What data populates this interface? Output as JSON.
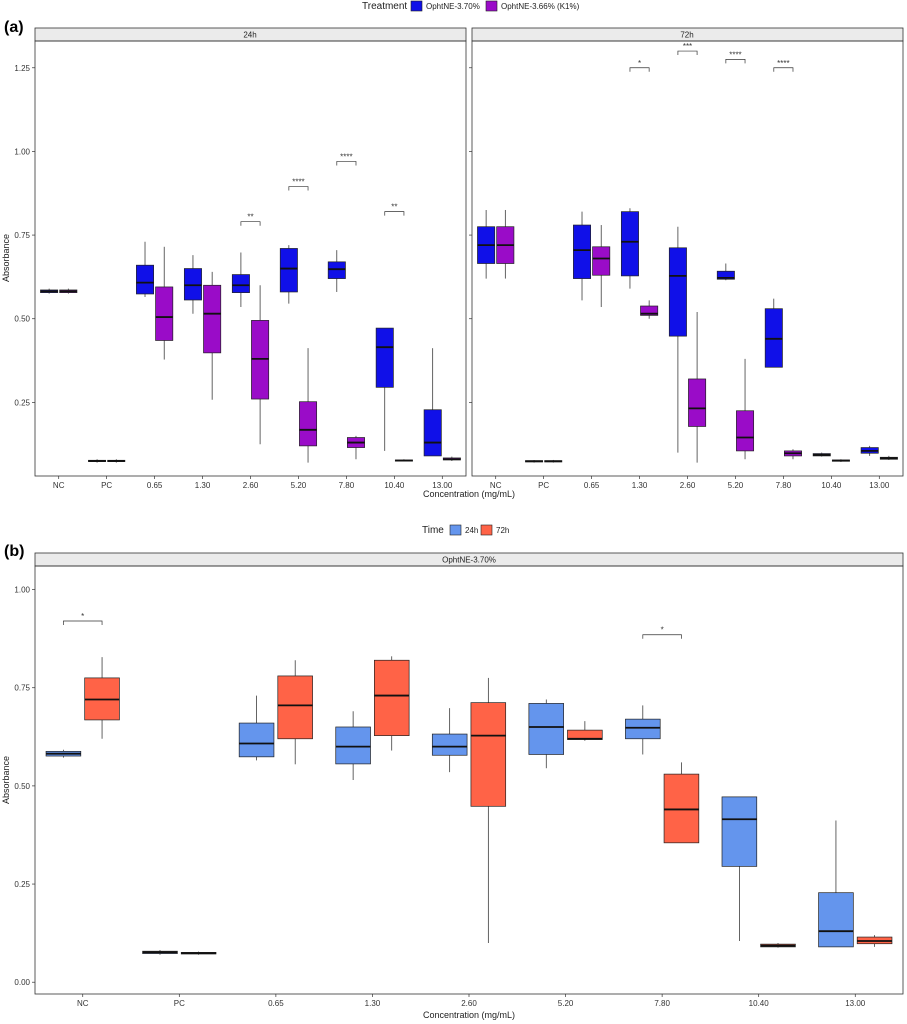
{
  "figure": {
    "panel_a_label": "(a)",
    "panel_b_label": "(b)"
  },
  "legend_a": {
    "title": "Treatment",
    "items": [
      {
        "label": "OphtNE-3.70%",
        "color": "#1010e8"
      },
      {
        "label": "OphtNE-3.66% (K1%)",
        "color": "#9a0cc8"
      }
    ]
  },
  "legend_b": {
    "title": "Time",
    "items": [
      {
        "label": "24h",
        "color": "#6495ed"
      },
      {
        "label": "72h",
        "color": "#ff6347"
      }
    ]
  },
  "chart_data": [
    {
      "type": "boxplot",
      "panel": "(a)",
      "facets": [
        "24h",
        "72h"
      ],
      "xlabel": "Concentration (mg/mL)",
      "ylabel": "Absorbance",
      "categories": [
        "NC",
        "PC",
        "0.65",
        "1.30",
        "2.60",
        "5.20",
        "7.80",
        "10.40",
        "13.00"
      ],
      "ylim": [
        0.03,
        1.33
      ],
      "yticks": [
        0.25,
        0.5,
        0.75,
        1.0,
        1.25
      ],
      "ytick_labels": [
        "0.25",
        "0.50",
        "0.75",
        "1.00",
        "1.25"
      ],
      "series": [
        {
          "name": "OphtNE-3.70%",
          "facet": "24h",
          "boxes": [
            {
              "lw": 0.575,
              "q1": 0.578,
              "med": 0.582,
              "q3": 0.586,
              "uw": 0.59
            },
            {
              "lw": 0.07,
              "q1": 0.073,
              "med": 0.075,
              "q3": 0.077,
              "uw": 0.08
            },
            {
              "lw": 0.565,
              "q1": 0.574,
              "med": 0.608,
              "q3": 0.66,
              "uw": 0.73
            },
            {
              "lw": 0.515,
              "q1": 0.556,
              "med": 0.6,
              "q3": 0.65,
              "uw": 0.69
            },
            {
              "lw": 0.535,
              "q1": 0.578,
              "med": 0.6,
              "q3": 0.632,
              "uw": 0.698
            },
            {
              "lw": 0.545,
              "q1": 0.58,
              "med": 0.65,
              "q3": 0.71,
              "uw": 0.72
            },
            {
              "lw": 0.58,
              "q1": 0.62,
              "med": 0.648,
              "q3": 0.67,
              "uw": 0.705
            },
            {
              "lw": 0.105,
              "q1": 0.295,
              "med": 0.415,
              "q3": 0.472,
              "uw": 0.472
            },
            {
              "lw": 0.09,
              "q1": 0.09,
              "med": 0.13,
              "q3": 0.228,
              "uw": 0.412
            }
          ]
        },
        {
          "name": "OphtNE-3.66% (K1%)",
          "facet": "24h",
          "boxes": [
            {
              "lw": 0.575,
              "q1": 0.578,
              "med": 0.582,
              "q3": 0.586,
              "uw": 0.59
            },
            {
              "lw": 0.07,
              "q1": 0.073,
              "med": 0.075,
              "q3": 0.077,
              "uw": 0.08
            },
            {
              "lw": 0.378,
              "q1": 0.435,
              "med": 0.505,
              "q3": 0.595,
              "uw": 0.715
            },
            {
              "lw": 0.258,
              "q1": 0.398,
              "med": 0.515,
              "q3": 0.6,
              "uw": 0.64
            },
            {
              "lw": 0.125,
              "q1": 0.26,
              "med": 0.38,
              "q3": 0.495,
              "uw": 0.6
            },
            {
              "lw": 0.07,
              "q1": 0.12,
              "med": 0.168,
              "q3": 0.252,
              "uw": 0.412
            },
            {
              "lw": 0.08,
              "q1": 0.115,
              "med": 0.13,
              "q3": 0.145,
              "uw": 0.15
            },
            {
              "lw": 0.075,
              "q1": 0.075,
              "med": 0.076,
              "q3": 0.078,
              "uw": 0.08
            },
            {
              "lw": 0.075,
              "q1": 0.078,
              "med": 0.08,
              "q3": 0.084,
              "uw": 0.088
            }
          ]
        },
        {
          "name": "OphtNE-3.70%",
          "facet": "72h",
          "boxes": [
            {
              "lw": 0.62,
              "q1": 0.665,
              "med": 0.72,
              "q3": 0.775,
              "uw": 0.825
            },
            {
              "lw": 0.07,
              "q1": 0.072,
              "med": 0.074,
              "q3": 0.076,
              "uw": 0.078
            },
            {
              "lw": 0.555,
              "q1": 0.62,
              "med": 0.705,
              "q3": 0.78,
              "uw": 0.82
            },
            {
              "lw": 0.59,
              "q1": 0.628,
              "med": 0.73,
              "q3": 0.82,
              "uw": 0.83
            },
            {
              "lw": 0.1,
              "q1": 0.448,
              "med": 0.628,
              "q3": 0.712,
              "uw": 0.775
            },
            {
              "lw": 0.615,
              "q1": 0.618,
              "med": 0.622,
              "q3": 0.642,
              "uw": 0.665
            },
            {
              "lw": 0.355,
              "q1": 0.355,
              "med": 0.44,
              "q3": 0.53,
              "uw": 0.56
            },
            {
              "lw": 0.088,
              "q1": 0.09,
              "med": 0.093,
              "q3": 0.097,
              "uw": 0.1
            },
            {
              "lw": 0.09,
              "q1": 0.098,
              "med": 0.105,
              "q3": 0.115,
              "uw": 0.12
            }
          ]
        },
        {
          "name": "OphtNE-3.66% (K1%)",
          "facet": "72h",
          "boxes": [
            {
              "lw": 0.62,
              "q1": 0.665,
              "med": 0.72,
              "q3": 0.775,
              "uw": 0.825
            },
            {
              "lw": 0.07,
              "q1": 0.072,
              "med": 0.074,
              "q3": 0.076,
              "uw": 0.078
            },
            {
              "lw": 0.535,
              "q1": 0.63,
              "med": 0.68,
              "q3": 0.715,
              "uw": 0.78
            },
            {
              "lw": 0.5,
              "q1": 0.51,
              "med": 0.515,
              "q3": 0.538,
              "uw": 0.555
            },
            {
              "lw": 0.07,
              "q1": 0.178,
              "med": 0.232,
              "q3": 0.32,
              "uw": 0.52
            },
            {
              "lw": 0.08,
              "q1": 0.105,
              "med": 0.145,
              "q3": 0.225,
              "uw": 0.38
            },
            {
              "lw": 0.08,
              "q1": 0.09,
              "med": 0.098,
              "q3": 0.105,
              "uw": 0.11
            },
            {
              "lw": 0.072,
              "q1": 0.074,
              "med": 0.076,
              "q3": 0.078,
              "uw": 0.08
            },
            {
              "lw": 0.078,
              "q1": 0.08,
              "med": 0.083,
              "q3": 0.086,
              "uw": 0.09
            }
          ]
        }
      ],
      "significance": [
        {
          "facet": "24h",
          "category": "2.60",
          "label": "**",
          "y": 0.79
        },
        {
          "facet": "24h",
          "category": "5.20",
          "label": "****",
          "y": 0.895
        },
        {
          "facet": "24h",
          "category": "7.80",
          "label": "****",
          "y": 0.97
        },
        {
          "facet": "24h",
          "category": "10.40",
          "label": "**",
          "y": 0.82
        },
        {
          "facet": "72h",
          "category": "1.30",
          "label": "*",
          "y": 1.25
        },
        {
          "facet": "72h",
          "category": "2.60",
          "label": "***",
          "y": 1.3
        },
        {
          "facet": "72h",
          "category": "5.20",
          "label": "****",
          "y": 1.275
        },
        {
          "facet": "72h",
          "category": "7.80",
          "label": "****",
          "y": 1.25
        }
      ]
    },
    {
      "type": "boxplot",
      "panel": "(b)",
      "facets": [
        "OphtNE-3.70%"
      ],
      "xlabel": "Concentration (mg/mL)",
      "ylabel": "Absorbance",
      "categories": [
        "NC",
        "PC",
        "0.65",
        "1.30",
        "2.60",
        "5.20",
        "7.80",
        "10.40",
        "13.00"
      ],
      "ylim": [
        -0.03,
        1.06
      ],
      "yticks": [
        0.0,
        0.25,
        0.5,
        0.75,
        1.0
      ],
      "ytick_labels": [
        "0.00",
        "0.25",
        "0.50",
        "0.75",
        "1.00"
      ],
      "series": [
        {
          "name": "24h",
          "boxes": [
            {
              "lw": 0.572,
              "q1": 0.576,
              "med": 0.582,
              "q3": 0.588,
              "uw": 0.592
            },
            {
              "lw": 0.07,
              "q1": 0.073,
              "med": 0.076,
              "q3": 0.079,
              "uw": 0.082
            },
            {
              "lw": 0.565,
              "q1": 0.574,
              "med": 0.608,
              "q3": 0.66,
              "uw": 0.73
            },
            {
              "lw": 0.515,
              "q1": 0.556,
              "med": 0.6,
              "q3": 0.65,
              "uw": 0.69
            },
            {
              "lw": 0.535,
              "q1": 0.578,
              "med": 0.6,
              "q3": 0.632,
              "uw": 0.698
            },
            {
              "lw": 0.545,
              "q1": 0.58,
              "med": 0.65,
              "q3": 0.71,
              "uw": 0.72
            },
            {
              "lw": 0.58,
              "q1": 0.62,
              "med": 0.648,
              "q3": 0.67,
              "uw": 0.705
            },
            {
              "lw": 0.105,
              "q1": 0.295,
              "med": 0.415,
              "q3": 0.472,
              "uw": 0.472
            },
            {
              "lw": 0.09,
              "q1": 0.09,
              "med": 0.13,
              "q3": 0.228,
              "uw": 0.412
            }
          ]
        },
        {
          "name": "72h",
          "boxes": [
            {
              "lw": 0.62,
              "q1": 0.668,
              "med": 0.72,
              "q3": 0.775,
              "uw": 0.828
            },
            {
              "lw": 0.07,
              "q1": 0.072,
              "med": 0.074,
              "q3": 0.076,
              "uw": 0.078
            },
            {
              "lw": 0.555,
              "q1": 0.62,
              "med": 0.705,
              "q3": 0.78,
              "uw": 0.82
            },
            {
              "lw": 0.59,
              "q1": 0.628,
              "med": 0.73,
              "q3": 0.82,
              "uw": 0.83
            },
            {
              "lw": 0.1,
              "q1": 0.448,
              "med": 0.628,
              "q3": 0.712,
              "uw": 0.775
            },
            {
              "lw": 0.615,
              "q1": 0.618,
              "med": 0.62,
              "q3": 0.642,
              "uw": 0.665
            },
            {
              "lw": 0.355,
              "q1": 0.355,
              "med": 0.44,
              "q3": 0.53,
              "uw": 0.56
            },
            {
              "lw": 0.088,
              "q1": 0.09,
              "med": 0.093,
              "q3": 0.097,
              "uw": 0.1
            },
            {
              "lw": 0.09,
              "q1": 0.098,
              "med": 0.105,
              "q3": 0.115,
              "uw": 0.12
            }
          ]
        }
      ],
      "significance": [
        {
          "category": "NC",
          "label": "*",
          "y": 0.92
        },
        {
          "category": "7.80",
          "label": "*",
          "y": 0.885
        }
      ]
    }
  ]
}
